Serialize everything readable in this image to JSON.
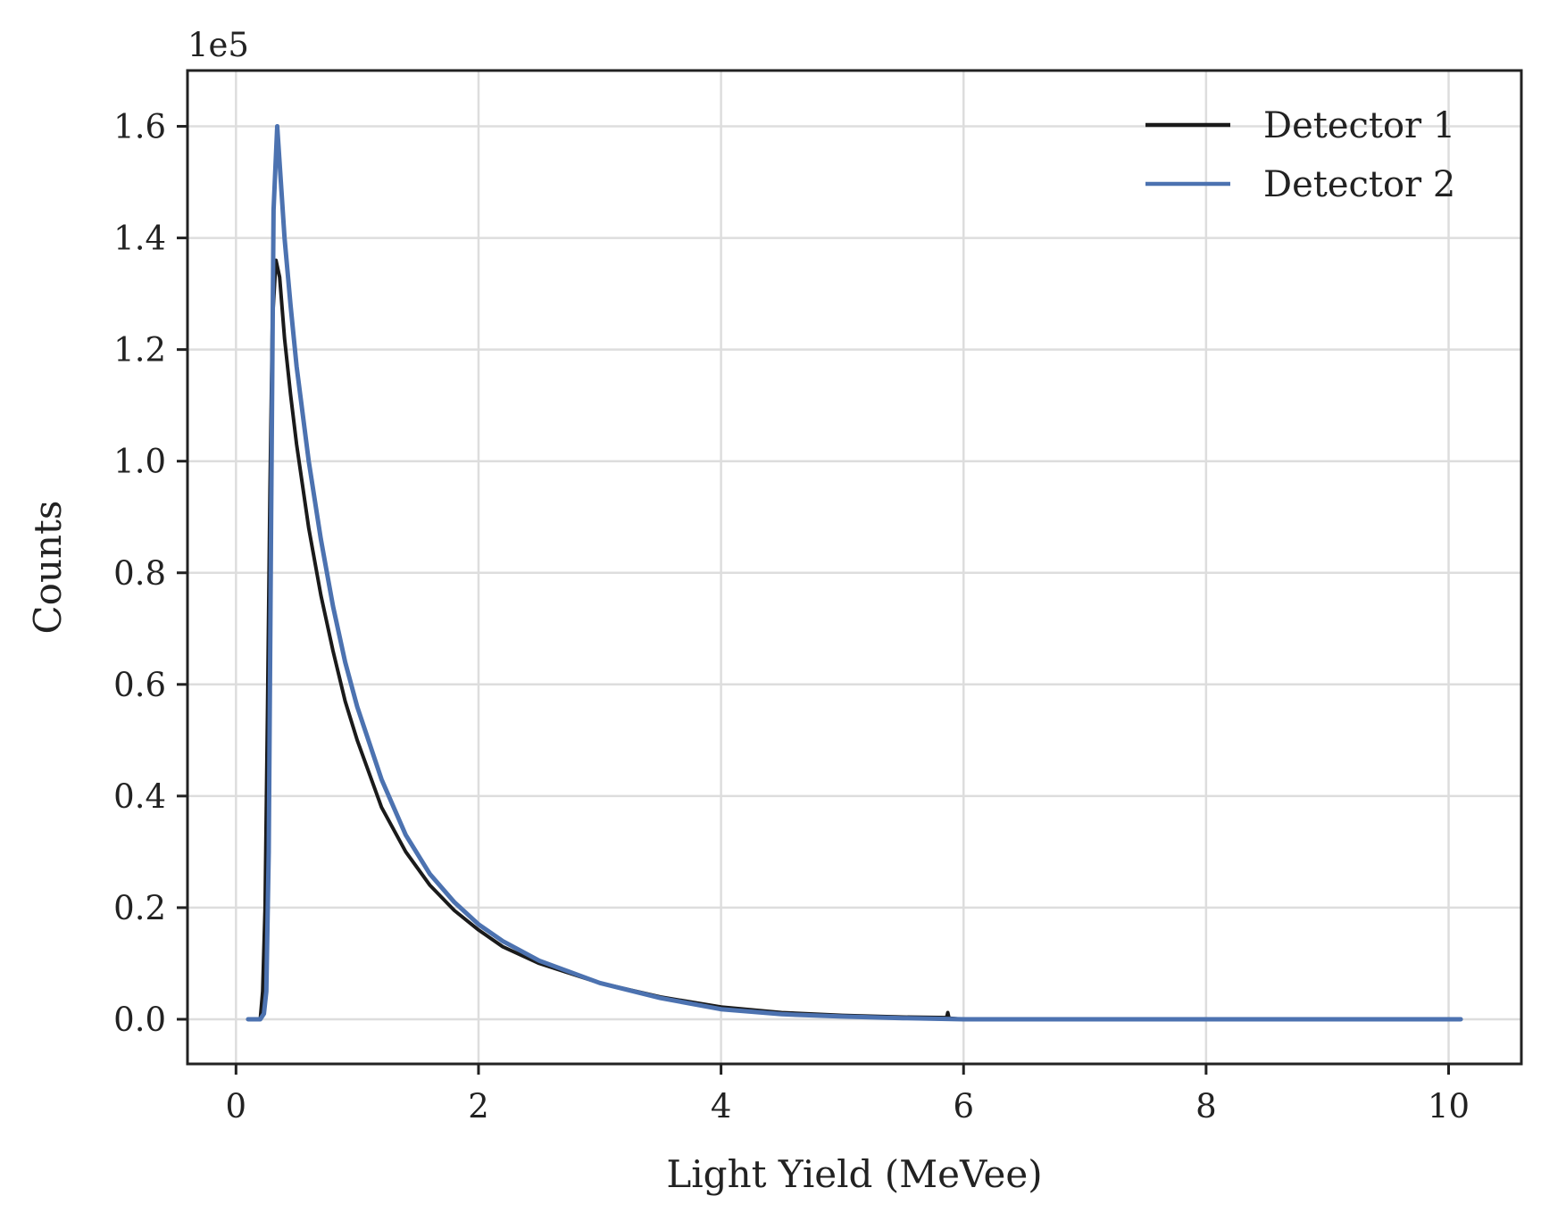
{
  "chart_data": {
    "type": "line",
    "title": "",
    "xlabel": "Light Yield (MeVee)",
    "ylabel": "Counts",
    "y_offset_label": "1e5",
    "xlim": [
      -0.4,
      10.6
    ],
    "ylim": [
      -0.08,
      1.7
    ],
    "xticks": [
      0,
      2,
      4,
      6,
      8,
      10
    ],
    "yticks": [
      0.0,
      0.2,
      0.4,
      0.6,
      0.8,
      1.0,
      1.2,
      1.4,
      1.6
    ],
    "xtick_labels": [
      "0",
      "2",
      "4",
      "6",
      "8",
      "10"
    ],
    "ytick_labels": [
      "0.0",
      "0.2",
      "0.4",
      "0.6",
      "0.8",
      "1.0",
      "1.2",
      "1.4",
      "1.6"
    ],
    "grid": true,
    "legend_position": "top-right",
    "series": [
      {
        "name": "Detector 1",
        "color": "#1a1a1a",
        "x": [
          0.1,
          0.2,
          0.22,
          0.24,
          0.26,
          0.28,
          0.3,
          0.33,
          0.36,
          0.4,
          0.45,
          0.5,
          0.6,
          0.7,
          0.8,
          0.9,
          1.0,
          1.2,
          1.4,
          1.6,
          1.8,
          2.0,
          2.2,
          2.5,
          3.0,
          3.5,
          4.0,
          4.5,
          5.0,
          5.5,
          5.86,
          5.87,
          5.88,
          6.0,
          7.0,
          8.0,
          9.0,
          10.1
        ],
        "y": [
          0.0,
          0.0,
          0.05,
          0.2,
          0.55,
          0.95,
          1.25,
          1.36,
          1.33,
          1.22,
          1.12,
          1.03,
          0.88,
          0.76,
          0.66,
          0.57,
          0.5,
          0.38,
          0.3,
          0.24,
          0.195,
          0.16,
          0.13,
          0.1,
          0.065,
          0.04,
          0.022,
          0.012,
          0.007,
          0.004,
          0.003,
          0.012,
          0.002,
          0.0,
          0.0,
          0.0,
          0.0,
          0.0
        ]
      },
      {
        "name": "Detector 2",
        "color": "#4c72b0",
        "x": [
          0.1,
          0.2,
          0.23,
          0.25,
          0.27,
          0.29,
          0.31,
          0.34,
          0.37,
          0.4,
          0.45,
          0.5,
          0.6,
          0.7,
          0.8,
          0.9,
          1.0,
          1.2,
          1.4,
          1.6,
          1.8,
          2.0,
          2.2,
          2.5,
          3.0,
          3.5,
          4.0,
          4.5,
          5.0,
          5.5,
          6.0,
          7.0,
          8.0,
          9.0,
          10.1
        ],
        "y": [
          0.0,
          0.0,
          0.01,
          0.05,
          0.3,
          0.9,
          1.45,
          1.6,
          1.5,
          1.4,
          1.28,
          1.17,
          1.0,
          0.86,
          0.74,
          0.64,
          0.56,
          0.43,
          0.33,
          0.26,
          0.21,
          0.17,
          0.14,
          0.105,
          0.065,
          0.038,
          0.018,
          0.009,
          0.005,
          0.002,
          0.0,
          0.0,
          0.0,
          0.0,
          0.0
        ]
      }
    ]
  }
}
